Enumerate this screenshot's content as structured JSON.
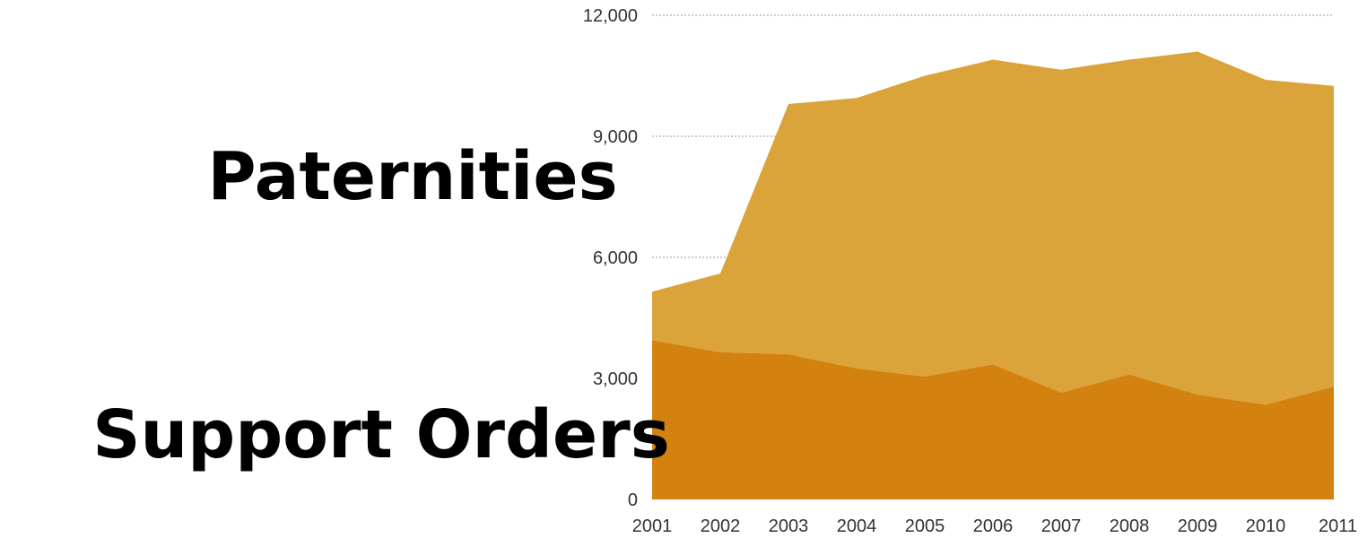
{
  "chart_data": {
    "type": "area",
    "stacked": true,
    "x": [
      "2001",
      "2002",
      "2003",
      "2004",
      "2005",
      "2006",
      "2007",
      "2008",
      "2009",
      "2010",
      "2011"
    ],
    "ylim": [
      0,
      12000
    ],
    "yticks": [
      0,
      3000,
      6000,
      9000,
      12000
    ],
    "ytick_labels": [
      "0",
      "3,000",
      "6,000",
      "9,000",
      "12,000"
    ],
    "grid": true,
    "series": [
      {
        "name": "Support Orders",
        "color": "#d4820f",
        "values": [
          3950,
          3650,
          3600,
          3250,
          3050,
          3350,
          2650,
          3100,
          2600,
          2350,
          2800
        ]
      },
      {
        "name": "Paternities",
        "color": "#dba43a",
        "values": [
          1200,
          1950,
          6200,
          6700,
          7450,
          7550,
          8000,
          7800,
          8500,
          8050,
          7450
        ]
      }
    ]
  }
}
